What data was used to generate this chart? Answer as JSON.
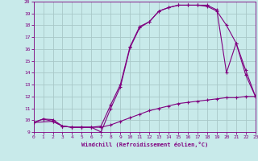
{
  "xlabel": "Windchill (Refroidissement éolien,°C)",
  "bg_color": "#c8eaea",
  "line_color": "#800080",
  "grid_color": "#a8c8c8",
  "curve1_x": [
    0,
    1,
    2,
    3,
    4,
    5,
    6,
    7,
    8,
    9,
    10,
    11,
    12,
    13,
    14,
    15,
    16,
    17,
    18,
    19,
    20,
    21,
    22,
    23
  ],
  "curve1_y": [
    9.8,
    10.1,
    10.05,
    9.5,
    9.4,
    9.4,
    9.4,
    9.0,
    11.0,
    12.8,
    16.1,
    17.8,
    18.3,
    19.2,
    19.5,
    19.7,
    19.7,
    19.7,
    19.6,
    19.2,
    18.0,
    16.5,
    14.2,
    12.0
  ],
  "curve2_x": [
    0,
    1,
    2,
    3,
    4,
    5,
    6,
    7,
    8,
    9,
    10,
    11,
    12,
    13,
    14,
    15,
    16,
    17,
    18,
    19,
    20,
    21,
    22,
    23
  ],
  "curve2_y": [
    9.8,
    10.1,
    9.9,
    9.5,
    9.4,
    9.4,
    9.4,
    9.4,
    9.6,
    9.9,
    10.2,
    10.5,
    10.8,
    11.0,
    11.2,
    11.4,
    11.5,
    11.6,
    11.7,
    11.8,
    11.9,
    11.9,
    12.0,
    12.0
  ],
  "curve3_x": [
    0,
    2,
    3,
    4,
    5,
    6,
    7,
    8,
    9,
    10,
    11,
    12,
    13,
    14,
    15,
    16,
    17,
    18,
    19,
    20,
    21,
    22,
    23
  ],
  "curve3_y": [
    9.8,
    9.9,
    9.5,
    9.4,
    9.4,
    9.4,
    9.5,
    11.3,
    13.0,
    16.2,
    17.9,
    18.3,
    19.2,
    19.5,
    19.7,
    19.7,
    19.7,
    19.7,
    19.3,
    14.0,
    16.5,
    13.8,
    12.0
  ],
  "ylim": [
    9,
    20
  ],
  "xlim": [
    0,
    23
  ],
  "yticks": [
    9,
    10,
    11,
    12,
    13,
    14,
    15,
    16,
    17,
    18,
    19,
    20
  ],
  "xticks": [
    0,
    1,
    2,
    3,
    4,
    5,
    6,
    7,
    8,
    9,
    10,
    11,
    12,
    13,
    14,
    15,
    16,
    17,
    18,
    19,
    20,
    21,
    22,
    23
  ]
}
